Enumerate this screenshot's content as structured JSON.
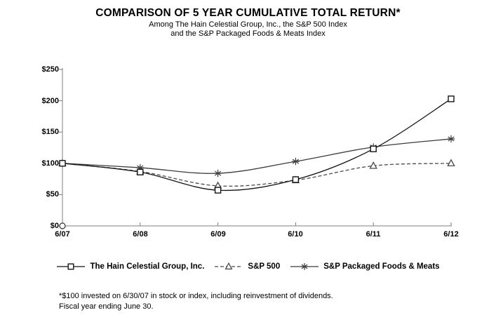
{
  "header": {
    "title": "COMPARISON OF 5 YEAR CUMULATIVE TOTAL RETURN*",
    "subtitle_line1": "Among The Hain Celestial Group, Inc., the S&P 500 Index",
    "subtitle_line2": "and the S&P Packaged Foods & Meats Index"
  },
  "chart_data": {
    "type": "line",
    "x": [
      "6/07",
      "6/08",
      "6/09",
      "6/10",
      "6/11",
      "6/12"
    ],
    "series": [
      {
        "name": "The Hain Celestial Group, Inc.",
        "marker": "square",
        "line": "solid",
        "color": "#141414",
        "values": [
          100,
          86,
          57,
          74,
          123,
          203
        ]
      },
      {
        "name": "S&P 500",
        "marker": "triangle",
        "line": "dashed",
        "color": "#4a4a4a",
        "values": [
          100,
          87,
          64,
          73,
          96,
          100
        ]
      },
      {
        "name": "S&P Packaged Foods & Meats",
        "marker": "asterisk",
        "line": "solid",
        "color": "#3c3c3c",
        "values": [
          100,
          93,
          84,
          103,
          126,
          139
        ]
      }
    ],
    "ylim": [
      0,
      250
    ],
    "ytick_step": 50,
    "ytick_labels": [
      "$0",
      "$50",
      "$100",
      "$150",
      "$200",
      "$250"
    ],
    "grid": false,
    "legend_position": "bottom",
    "axis_color": "#7f7f7f"
  },
  "footnote": {
    "line1": "*$100 invested on 6/30/07 in stock or index, including reinvestment of dividends.",
    "line2": "Fiscal year ending June 30."
  }
}
